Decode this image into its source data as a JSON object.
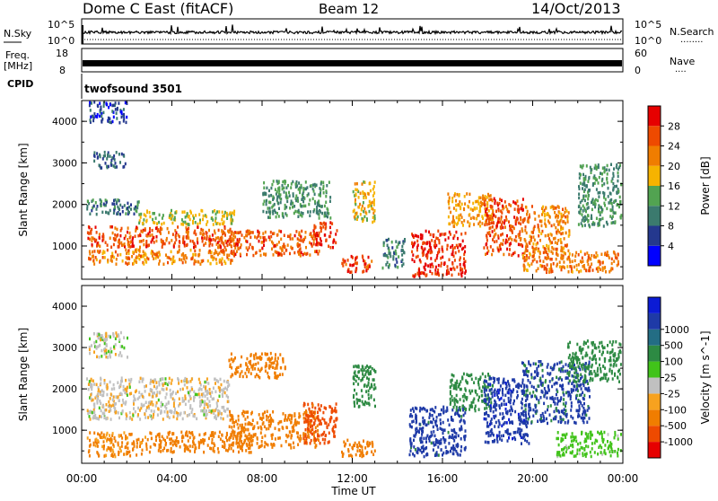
{
  "header": {
    "station": "Dome C East (fitACF)",
    "beam": "Beam 12",
    "date": "14/Oct/2013"
  },
  "sky_panel": {
    "left_label": "N.Sky",
    "right_label": "N.Search",
    "right_dots": "........",
    "ticks_top": "10^5",
    "ticks_bottom": "10^0"
  },
  "freq_panel": {
    "left_label_1": "Freq.",
    "left_label_2": "[MHz]",
    "left_tick_top": "18",
    "left_tick_bottom": "8",
    "right_label": "Nave",
    "right_dots": "....",
    "right_tick_top": "60",
    "right_tick_bottom": "0"
  },
  "cpid": {
    "label": "CPID",
    "value": "twofsound 3501"
  },
  "colors": {
    "power_scale": [
      "#0000ff",
      "#24388e",
      "#3b7a6e",
      "#52a351",
      "#f6b300",
      "#f07d00",
      "#ee4a00",
      "#e60000"
    ],
    "velocity_scale": [
      "#e60000",
      "#ee4a00",
      "#f07d00",
      "#f7a21f",
      "#c0c0c0",
      "#41c31a",
      "#2d8a43",
      "#236d84",
      "#1e3aa7",
      "#0b1bd5"
    ]
  },
  "chart_data": [
    {
      "type": "heatmap",
      "name": "power",
      "xlabel": "",
      "ylabel": "Slant Range [km]",
      "x_ticks": [
        "00:00",
        "04:00",
        "08:00",
        "12:00",
        "16:00",
        "20:00",
        "00:00"
      ],
      "y_ticks": [
        "1000",
        "2000",
        "3000",
        "4000"
      ],
      "ylim": [
        200,
        4500
      ],
      "colorbar": {
        "label": "Power [dB]",
        "ticks": [
          "4",
          "8",
          "12",
          "16",
          "20",
          "24",
          "28"
        ],
        "range": [
          0,
          32
        ]
      },
      "blobs": [
        {
          "t": [
            0.2,
            6.8
          ],
          "r": [
            1000,
            1500
          ],
          "v": 26
        },
        {
          "t": [
            0.2,
            6.8
          ],
          "r": [
            600,
            950
          ],
          "v": 22
        },
        {
          "t": [
            2.5,
            6.8
          ],
          "r": [
            1550,
            1900
          ],
          "v": 16
        },
        {
          "t": [
            0.2,
            2.5
          ],
          "r": [
            1800,
            2150
          ],
          "v": 10
        },
        {
          "t": [
            6.0,
            10.5
          ],
          "r": [
            800,
            1400
          ],
          "v": 25
        },
        {
          "t": [
            10.2,
            11.3
          ],
          "r": [
            1000,
            1600
          ],
          "v": 28
        },
        {
          "t": [
            11.5,
            13.0
          ],
          "r": [
            400,
            800
          ],
          "v": 27
        },
        {
          "t": [
            12.0,
            13.0
          ],
          "r": [
            1600,
            2600
          ],
          "v": 18
        },
        {
          "t": [
            14.6,
            17.0
          ],
          "r": [
            300,
            1400
          ],
          "v": 28
        },
        {
          "t": [
            16.2,
            18.2
          ],
          "r": [
            1500,
            2300
          ],
          "v": 20
        },
        {
          "t": [
            17.8,
            19.6
          ],
          "r": [
            800,
            2200
          ],
          "v": 26
        },
        {
          "t": [
            19.6,
            21.6
          ],
          "r": [
            900,
            2000
          ],
          "v": 22
        },
        {
          "t": [
            19.5,
            23.8
          ],
          "r": [
            400,
            900
          ],
          "v": 23
        },
        {
          "t": [
            22.0,
            23.9
          ],
          "r": [
            1500,
            3000
          ],
          "v": 12
        },
        {
          "t": [
            8.0,
            11.0
          ],
          "r": [
            1700,
            2600
          ],
          "v": 12
        },
        {
          "t": [
            0.5,
            2.0
          ],
          "r": [
            2900,
            3300
          ],
          "v": 8
        },
        {
          "t": [
            0.3,
            2.0
          ],
          "r": [
            4000,
            4500
          ],
          "v": 6
        },
        {
          "t": [
            13.3,
            14.3
          ],
          "r": [
            500,
            1200
          ],
          "v": 10
        }
      ]
    },
    {
      "type": "heatmap",
      "name": "velocity",
      "xlabel": "Time UT",
      "ylabel": "Slant Range [km]",
      "x_ticks": [
        "00:00",
        "04:00",
        "08:00",
        "12:00",
        "16:00",
        "20:00",
        "00:00"
      ],
      "y_ticks": [
        "1000",
        "2000",
        "3000",
        "4000"
      ],
      "ylim": [
        200,
        4500
      ],
      "colorbar": {
        "label": "Velocity [m s^-1]",
        "ticks": [
          "-1000",
          "-500",
          "-100",
          "-25",
          "25",
          "100",
          "500",
          "1000"
        ]
      },
      "blobs": [
        {
          "t": [
            0.2,
            6.5
          ],
          "r": [
            1300,
            2300
          ],
          "v": -10
        },
        {
          "t": [
            0.2,
            2.8
          ],
          "r": [
            400,
            1000
          ],
          "v": -120
        },
        {
          "t": [
            2.8,
            7.5
          ],
          "r": [
            500,
            1000
          ],
          "v": -260
        },
        {
          "t": [
            6.5,
            10.5
          ],
          "r": [
            600,
            1500
          ],
          "v": -350
        },
        {
          "t": [
            9.8,
            11.3
          ],
          "r": [
            700,
            1700
          ],
          "v": -700
        },
        {
          "t": [
            6.5,
            9.0
          ],
          "r": [
            2300,
            2900
          ],
          "v": -300
        },
        {
          "t": [
            11.5,
            13.0
          ],
          "r": [
            400,
            800
          ],
          "v": -200
        },
        {
          "t": [
            12.0,
            13.0
          ],
          "r": [
            1600,
            2600
          ],
          "v": 150
        },
        {
          "t": [
            14.5,
            17.0
          ],
          "r": [
            400,
            1600
          ],
          "v": 700
        },
        {
          "t": [
            16.3,
            18.2
          ],
          "r": [
            1500,
            2400
          ],
          "v": 300
        },
        {
          "t": [
            17.8,
            19.8
          ],
          "r": [
            700,
            2300
          ],
          "v": 800
        },
        {
          "t": [
            19.5,
            22.5
          ],
          "r": [
            1200,
            2700
          ],
          "v": 600
        },
        {
          "t": [
            21.0,
            23.9
          ],
          "r": [
            400,
            1000
          ],
          "v": 60
        },
        {
          "t": [
            21.5,
            23.9
          ],
          "r": [
            2200,
            3200
          ],
          "v": 150
        },
        {
          "t": [
            0.3,
            2.0
          ],
          "r": [
            2800,
            3400
          ],
          "v": 0
        }
      ]
    }
  ]
}
